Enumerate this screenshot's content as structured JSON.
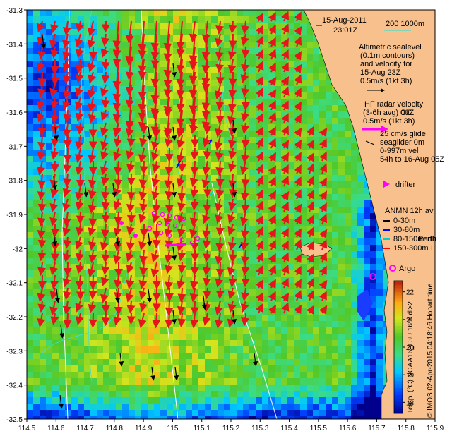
{
  "header": {
    "date": "15-Aug-2011",
    "time": "23:01Z",
    "scale_label": "200  1000m"
  },
  "legend": {
    "altimetric": [
      "Altimetric sealevel",
      "(0.1m contours)",
      "and velocity for",
      "15-Aug 23Z",
      "0.5m/s (1kt 3h)"
    ],
    "hf_radar": [
      "HF radar velocity",
      "(3-6h avg) 00Z",
      "0.5m/s (1kt 3h)"
    ],
    "glider": [
      "25 cm/s glide",
      "seaglider 0m",
      "0-997m vel",
      "54h to 16-Aug 05Z"
    ],
    "drifter": "drifter",
    "anmn_title": "ANMN 12h av",
    "anmn_items": [
      {
        "label": "0-30m",
        "color": "#000000"
      },
      {
        "label": "30-80m",
        "color": "#0000ff"
      },
      {
        "label": "80-150m",
        "color": "#00cccc"
      },
      {
        "label": "150-300m",
        "color": "#ff0000"
      }
    ],
    "argo": "Argo",
    "perth": "Perth",
    "overlap_glyphs": [
      "CC",
      "rth",
      "L"
    ]
  },
  "colorbar": {
    "ticks": [
      18,
      19,
      20,
      21,
      22
    ],
    "range": [
      17.6,
      22.4
    ],
    "label": "Temp. (°C) NOAA16_L3U 16% dl>2",
    "credit": "© IMOS 02-Apr-2015 04:18:46 Hobart time"
  },
  "axes": {
    "x_ticks": [
      114.5,
      114.6,
      114.7,
      114.8,
      114.9,
      115,
      115.1,
      115.2,
      115.3,
      115.4,
      115.5,
      115.6,
      115.7,
      115.8,
      115.9
    ],
    "y_ticks": [
      -31.3,
      -31.4,
      -31.5,
      -31.6,
      -31.7,
      -31.8,
      -31.9,
      -32,
      -32.1,
      -32.2,
      -32.3,
      -32.4,
      -32.5
    ],
    "x_range": [
      114.5,
      115.9
    ],
    "y_range": [
      -32.5,
      -31.3
    ]
  },
  "colors": {
    "land": "#f8c08c",
    "hf_vector": "#e8141c",
    "altimetry_vector": "#000000",
    "glider_path": "#ff00ff",
    "isobath": "#ffffff",
    "contour": "#40e0d0",
    "argo": "#ff00ff"
  }
}
